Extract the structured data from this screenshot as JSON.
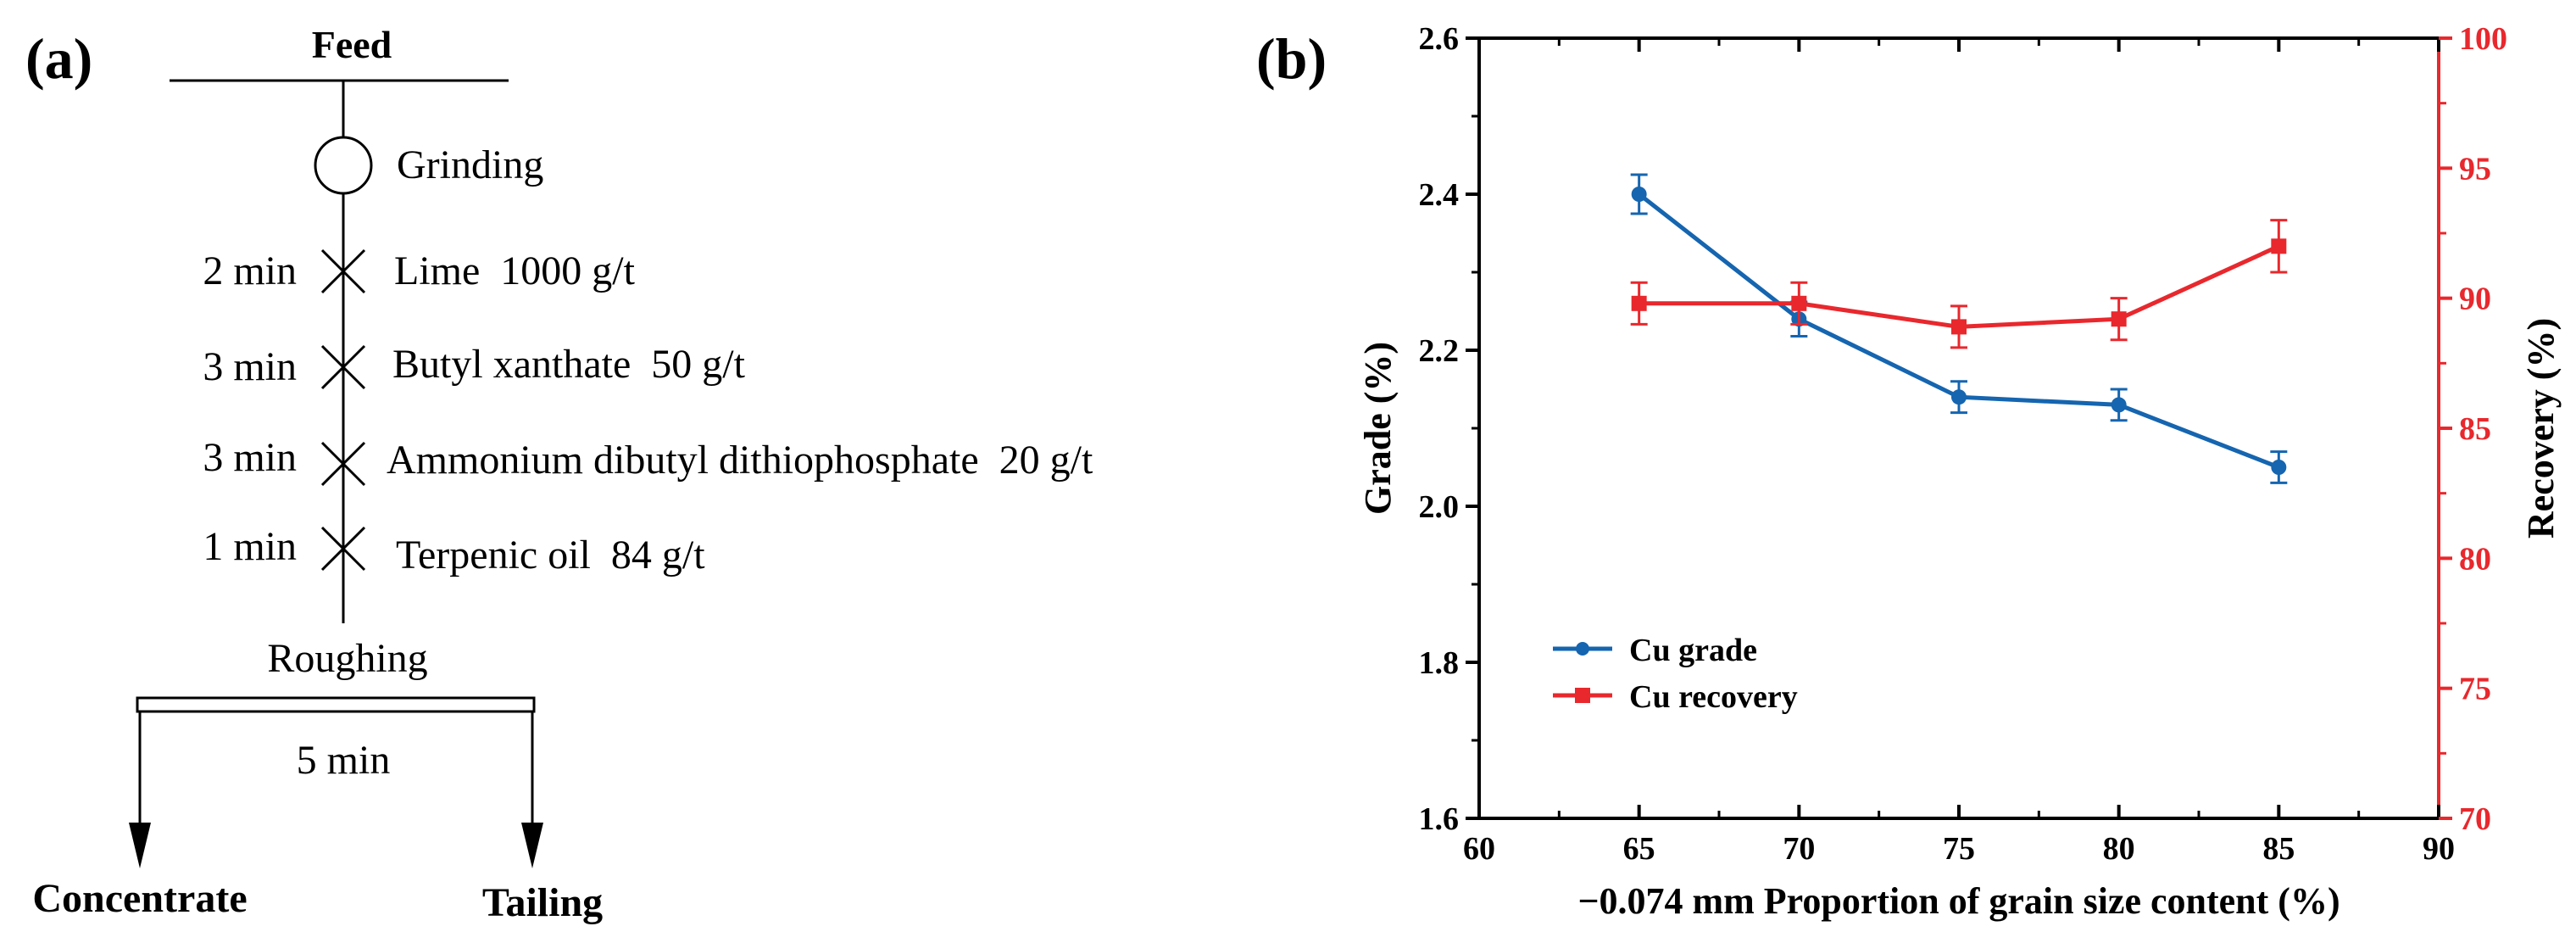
{
  "panel_a": {
    "label": "(a)",
    "feed": "Feed",
    "grinding": "Grinding",
    "steps": [
      {
        "time": "2 min",
        "reagent": "Lime  1000 g/t"
      },
      {
        "time": "3 min",
        "reagent": "Butyl xanthate  50 g/t"
      },
      {
        "time": "3 min",
        "reagent": "Ammonium dibutyl dithiophosphate  20 g/t"
      },
      {
        "time": "1 min",
        "reagent": "Terpenic oil  84 g/t"
      }
    ],
    "roughing": "Roughing",
    "roughing_time": "5 min",
    "concentrate": "Concentrate",
    "tailing": "Tailing"
  },
  "panel_b": {
    "label": "(b)"
  },
  "chart_data": {
    "type": "line",
    "title": "",
    "xlabel": "−0.074 mm Proportion of grain size content (%)",
    "ylabel": "Grade (%)",
    "y2label": "Recovery (%)",
    "xlim": [
      60,
      90
    ],
    "ylim": [
      1.6,
      2.6
    ],
    "y2lim": [
      70,
      100
    ],
    "xticks": [
      "60",
      "65",
      "70",
      "75",
      "80",
      "85",
      "90"
    ],
    "yticks": [
      "1.6",
      "1.8",
      "2.0",
      "2.2",
      "2.4",
      "2.6"
    ],
    "y2ticks": [
      "70",
      "75",
      "80",
      "85",
      "90",
      "95",
      "100"
    ],
    "x": [
      65,
      70,
      75,
      80,
      85
    ],
    "grid": false,
    "legend_position": "lower-left",
    "series": [
      {
        "name": "Cu grade",
        "axis": "left",
        "color": "#1565b0",
        "marker": "circle",
        "values": [
          2.4,
          2.24,
          2.14,
          2.13,
          2.05
        ],
        "errors": [
          0.025,
          0.022,
          0.02,
          0.02,
          0.02
        ]
      },
      {
        "name": "Cu recovery",
        "axis": "right",
        "color": "#e8282d",
        "marker": "square",
        "values": [
          89.8,
          89.8,
          88.9,
          89.2,
          92.0
        ],
        "errors": [
          0.8,
          0.8,
          0.8,
          0.8,
          1.0
        ]
      }
    ]
  }
}
